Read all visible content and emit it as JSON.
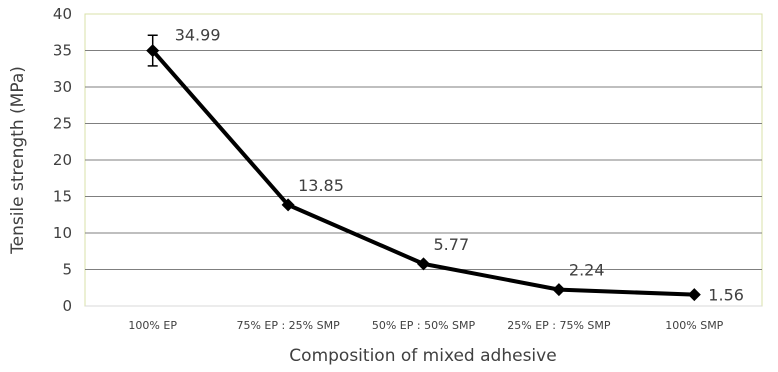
{
  "chart_data": {
    "type": "line",
    "title": "",
    "xlabel": "Composition of mixed adhesive",
    "ylabel": "Tensile strength (MPa)",
    "categories": [
      "100% EP",
      "75% EP : 25% SMP",
      "50% EP : 50% SMP",
      "25% EP : 75% SMP",
      "100% SMP"
    ],
    "series": [
      {
        "values": [
          34.99,
          13.85,
          5.77,
          2.24,
          1.56
        ],
        "data_labels": [
          "34.99",
          "13.85",
          "5.77",
          "2.24",
          "1.56"
        ],
        "error": [
          2.1,
          0,
          0,
          0,
          0
        ],
        "color": "#000000",
        "marker": "diamond"
      }
    ],
    "ylim": [
      0,
      40
    ],
    "yticks": [
      "0",
      "5",
      "10",
      "15",
      "20",
      "25",
      "30",
      "35",
      "40"
    ],
    "grid": true,
    "legend": "none",
    "colors": {
      "line": "#000000",
      "grid": "#7f7f7f",
      "plot_border": "#d9e0a8",
      "text": "#404040"
    }
  }
}
